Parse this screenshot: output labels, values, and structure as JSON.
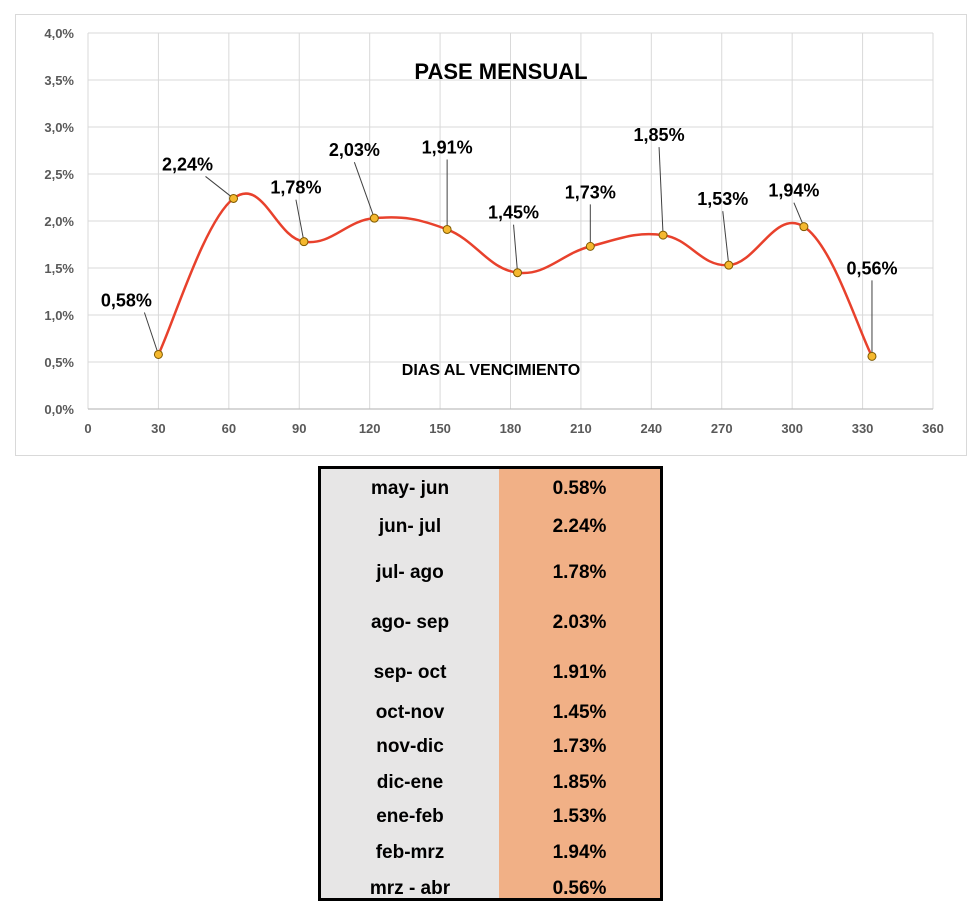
{
  "chart_data": {
    "type": "line",
    "title": "PASE MENSUAL",
    "xlabel": "DIAS AL VENCIMIENTO",
    "ylabel": "",
    "xlim": [
      0,
      360
    ],
    "ylim": [
      0,
      4.0
    ],
    "x_ticks": [
      "0",
      "30",
      "60",
      "90",
      "120",
      "150",
      "180",
      "210",
      "240",
      "270",
      "300",
      "330",
      "360"
    ],
    "y_ticks": [
      "0,0%",
      "0,5%",
      "1,0%",
      "1,5%",
      "2,0%",
      "2,5%",
      "3,0%",
      "3,5%",
      "4,0%"
    ],
    "grid": true,
    "smooth": true,
    "series": [
      {
        "x": [
          30,
          62,
          92,
          122,
          153,
          183,
          214,
          245,
          273,
          305,
          334
        ],
        "y": [
          0.58,
          2.24,
          1.78,
          2.03,
          1.91,
          1.45,
          1.73,
          1.85,
          1.53,
          1.94,
          0.56
        ],
        "labels": [
          "0,58%",
          "2,24%",
          "1,78%",
          "2,03%",
          "1,91%",
          "1,45%",
          "1,73%",
          "1,85%",
          "1,53%",
          "1,94%",
          "0,56%"
        ],
        "line_color": "#e8412c",
        "marker_color": "#f5b82e"
      }
    ]
  },
  "table": {
    "rows": [
      {
        "pair": "may- jun",
        "value": "0.58%"
      },
      {
        "pair": "jun- jul",
        "value": "2.24%"
      },
      {
        "pair": "jul- ago",
        "value": "1.78%"
      },
      {
        "pair": "ago- sep",
        "value": "2.03%"
      },
      {
        "pair": "sep- oct",
        "value": "1.91%"
      },
      {
        "pair": "oct-nov",
        "value": "1.45%"
      },
      {
        "pair": "nov-dic",
        "value": "1.73%"
      },
      {
        "pair": "dic-ene",
        "value": "1.85%"
      },
      {
        "pair": "ene-feb",
        "value": "1.53%"
      },
      {
        "pair": "feb-mrz",
        "value": "1.94%"
      },
      {
        "pair": "mrz - abr",
        "value": "0.56%"
      }
    ],
    "colors": {
      "left": "#e7e6e6",
      "right": "#f1b086"
    }
  }
}
